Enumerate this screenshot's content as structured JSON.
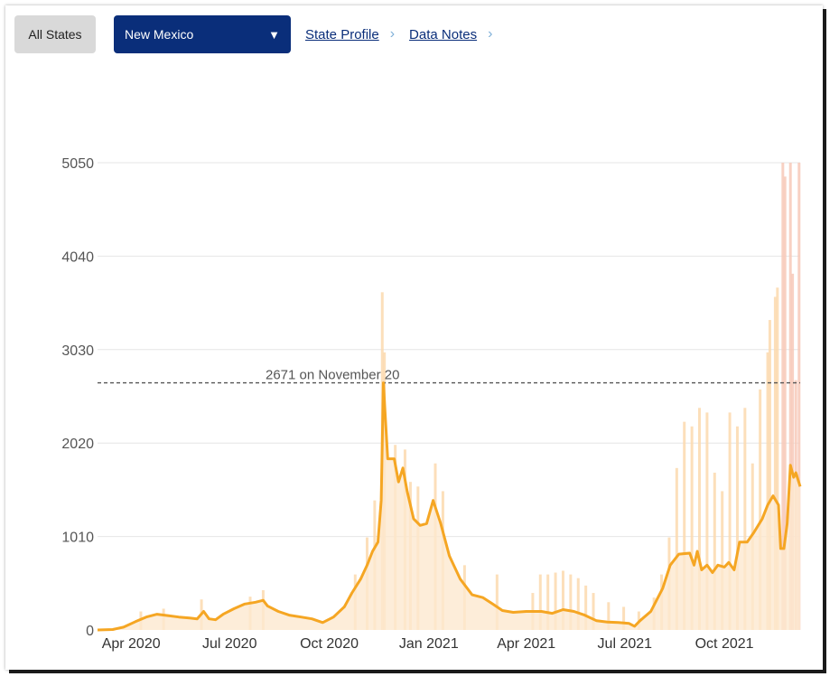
{
  "toolbar": {
    "all_states_label": "All States",
    "state_select_value": "New Mexico",
    "state_profile_label": "State Profile",
    "data_notes_label": "Data Notes"
  },
  "colors": {
    "line": "#f5a623",
    "area": "#fde9cf",
    "bars": "#fbd9ae",
    "recent_bars": "#f7c9b9",
    "grid": "#e6e6e6",
    "select_bg": "#0a2e7a"
  },
  "chart_data": {
    "type": "line",
    "title": "",
    "xlabel": "",
    "ylabel": "",
    "ylim": [
      0,
      5050
    ],
    "yticks": [
      "0",
      "1010",
      "2020",
      "3030",
      "4040",
      "5050"
    ],
    "xticks": [
      "Apr 2020",
      "Jul 2020",
      "Oct 2020",
      "Jan 2021",
      "Apr 2021",
      "Jul 2021",
      "Oct 2021"
    ],
    "xtick_dates": [
      "2020-04-01",
      "2020-07-01",
      "2020-10-01",
      "2021-01-01",
      "2021-04-01",
      "2021-07-01",
      "2021-10-01"
    ],
    "x_range": [
      "2020-03-01",
      "2021-12-10"
    ],
    "reference_line": {
      "value": 2671,
      "label": "2671 on November 20"
    },
    "series": [
      {
        "name": "",
        "style": "7-day average line with filled area",
        "points": [
          [
            "2020-03-01",
            0
          ],
          [
            "2020-03-15",
            5
          ],
          [
            "2020-03-25",
            30
          ],
          [
            "2020-04-05",
            90
          ],
          [
            "2020-04-15",
            140
          ],
          [
            "2020-04-25",
            170
          ],
          [
            "2020-05-05",
            155
          ],
          [
            "2020-05-15",
            140
          ],
          [
            "2020-05-25",
            130
          ],
          [
            "2020-06-01",
            120
          ],
          [
            "2020-06-07",
            200
          ],
          [
            "2020-06-12",
            120
          ],
          [
            "2020-06-18",
            110
          ],
          [
            "2020-06-25",
            170
          ],
          [
            "2020-07-05",
            230
          ],
          [
            "2020-07-15",
            280
          ],
          [
            "2020-07-25",
            300
          ],
          [
            "2020-08-01",
            320
          ],
          [
            "2020-08-05",
            260
          ],
          [
            "2020-08-15",
            200
          ],
          [
            "2020-08-25",
            160
          ],
          [
            "2020-09-05",
            140
          ],
          [
            "2020-09-15",
            120
          ],
          [
            "2020-09-25",
            80
          ],
          [
            "2020-10-05",
            140
          ],
          [
            "2020-10-15",
            250
          ],
          [
            "2020-10-22",
            400
          ],
          [
            "2020-10-30",
            550
          ],
          [
            "2020-11-05",
            700
          ],
          [
            "2020-11-10",
            850
          ],
          [
            "2020-11-15",
            950
          ],
          [
            "2020-11-18",
            1400
          ],
          [
            "2020-11-20",
            2671
          ],
          [
            "2020-11-24",
            1850
          ],
          [
            "2020-11-30",
            1850
          ],
          [
            "2020-12-04",
            1600
          ],
          [
            "2020-12-08",
            1750
          ],
          [
            "2020-12-12",
            1500
          ],
          [
            "2020-12-18",
            1200
          ],
          [
            "2020-12-24",
            1130
          ],
          [
            "2020-12-30",
            1150
          ],
          [
            "2021-01-05",
            1400
          ],
          [
            "2021-01-12",
            1150
          ],
          [
            "2021-01-20",
            800
          ],
          [
            "2021-01-30",
            550
          ],
          [
            "2021-02-10",
            380
          ],
          [
            "2021-02-20",
            350
          ],
          [
            "2021-03-01",
            280
          ],
          [
            "2021-03-10",
            210
          ],
          [
            "2021-03-20",
            190
          ],
          [
            "2021-04-01",
            200
          ],
          [
            "2021-04-15",
            200
          ],
          [
            "2021-04-25",
            180
          ],
          [
            "2021-05-05",
            220
          ],
          [
            "2021-05-15",
            200
          ],
          [
            "2021-05-25",
            160
          ],
          [
            "2021-06-05",
            100
          ],
          [
            "2021-06-15",
            85
          ],
          [
            "2021-06-25",
            80
          ],
          [
            "2021-07-05",
            70
          ],
          [
            "2021-07-10",
            40
          ],
          [
            "2021-07-15",
            100
          ],
          [
            "2021-07-25",
            200
          ],
          [
            "2021-08-05",
            450
          ],
          [
            "2021-08-12",
            700
          ],
          [
            "2021-08-20",
            820
          ],
          [
            "2021-08-30",
            830
          ],
          [
            "2021-09-03",
            700
          ],
          [
            "2021-09-06",
            850
          ],
          [
            "2021-09-10",
            650
          ],
          [
            "2021-09-15",
            700
          ],
          [
            "2021-09-20",
            620
          ],
          [
            "2021-09-25",
            700
          ],
          [
            "2021-10-01",
            680
          ],
          [
            "2021-10-05",
            730
          ],
          [
            "2021-10-10",
            650
          ],
          [
            "2021-10-15",
            950
          ],
          [
            "2021-10-22",
            950
          ],
          [
            "2021-10-28",
            1050
          ],
          [
            "2021-11-05",
            1200
          ],
          [
            "2021-11-10",
            1350
          ],
          [
            "2021-11-15",
            1450
          ],
          [
            "2021-11-20",
            1350
          ],
          [
            "2021-11-22",
            880
          ],
          [
            "2021-11-25",
            880
          ],
          [
            "2021-11-28",
            1150
          ],
          [
            "2021-12-01",
            1780
          ],
          [
            "2021-12-04",
            1650
          ],
          [
            "2021-12-06",
            1700
          ],
          [
            "2021-12-10",
            1550
          ]
        ]
      },
      {
        "name": "",
        "style": "daily bars",
        "points": [
          [
            "2020-04-10",
            200
          ],
          [
            "2020-05-01",
            230
          ],
          [
            "2020-06-05",
            330
          ],
          [
            "2020-07-20",
            360
          ],
          [
            "2020-08-01",
            430
          ],
          [
            "2020-10-25",
            600
          ],
          [
            "2020-11-05",
            1000
          ],
          [
            "2020-11-12",
            1400
          ],
          [
            "2020-11-19",
            3650
          ],
          [
            "2020-11-21",
            3000
          ],
          [
            "2020-12-01",
            2000
          ],
          [
            "2020-12-10",
            1950
          ],
          [
            "2020-12-15",
            1600
          ],
          [
            "2020-12-22",
            1550
          ],
          [
            "2021-01-07",
            1800
          ],
          [
            "2021-01-14",
            1500
          ],
          [
            "2021-02-03",
            700
          ],
          [
            "2021-03-05",
            600
          ],
          [
            "2021-04-07",
            400
          ],
          [
            "2021-04-14",
            600
          ],
          [
            "2021-04-21",
            600
          ],
          [
            "2021-04-28",
            620
          ],
          [
            "2021-05-05",
            640
          ],
          [
            "2021-05-12",
            600
          ],
          [
            "2021-05-19",
            560
          ],
          [
            "2021-05-26",
            480
          ],
          [
            "2021-06-02",
            400
          ],
          [
            "2021-06-16",
            300
          ],
          [
            "2021-06-30",
            250
          ],
          [
            "2021-07-14",
            200
          ],
          [
            "2021-07-28",
            350
          ],
          [
            "2021-08-04",
            600
          ],
          [
            "2021-08-11",
            1000
          ],
          [
            "2021-08-18",
            1750
          ],
          [
            "2021-08-25",
            2250
          ],
          [
            "2021-09-01",
            2200
          ],
          [
            "2021-09-08",
            2400
          ],
          [
            "2021-09-15",
            2350
          ],
          [
            "2021-09-22",
            1700
          ],
          [
            "2021-09-29",
            1500
          ],
          [
            "2021-10-06",
            2350
          ],
          [
            "2021-10-13",
            2200
          ],
          [
            "2021-10-20",
            2400
          ],
          [
            "2021-10-27",
            1800
          ],
          [
            "2021-11-03",
            2600
          ],
          [
            "2021-11-10",
            3000
          ],
          [
            "2021-11-12",
            3350
          ],
          [
            "2021-11-17",
            3600
          ],
          [
            "2021-11-19",
            3700
          ],
          [
            "2021-11-24",
            5050
          ],
          [
            "2021-11-26",
            4900
          ],
          [
            "2021-12-01",
            5050
          ],
          [
            "2021-12-03",
            3850
          ],
          [
            "2021-12-06",
            2700
          ],
          [
            "2021-12-09",
            5050
          ]
        ]
      }
    ]
  }
}
